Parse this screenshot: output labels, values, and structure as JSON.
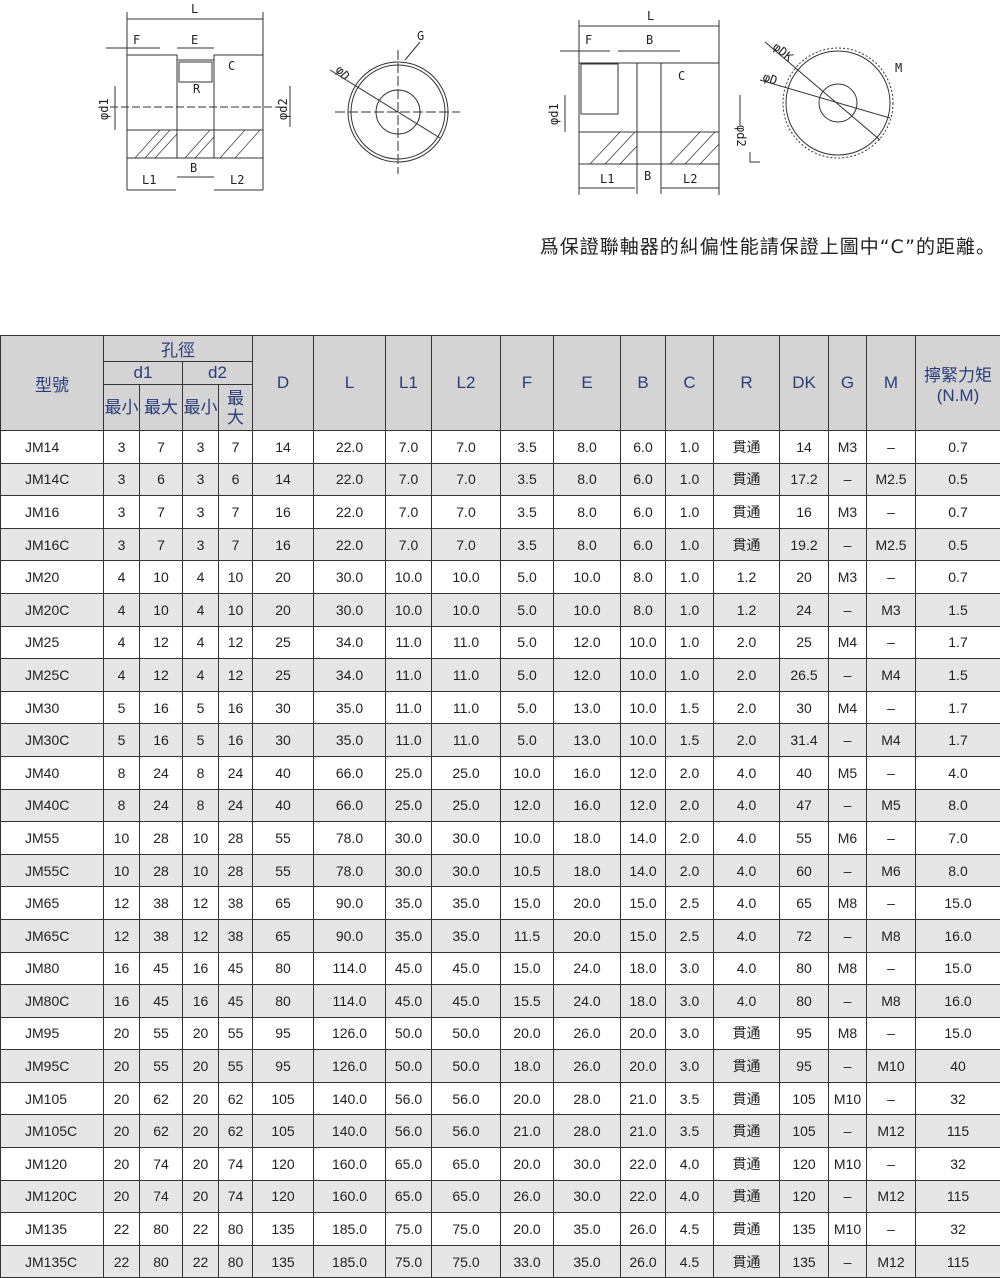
{
  "drawings": {
    "left": {
      "L": "L",
      "F": "F",
      "E": "E",
      "C": "C",
      "R": "R",
      "d1": "φd1",
      "d2": "φd2",
      "L1": "L1",
      "L2": "L2",
      "B": "B",
      "D": "φD",
      "G": "G"
    },
    "right": {
      "L": "L",
      "F": "F",
      "B": "B",
      "C": "C",
      "d1": "φd1",
      "d2": "φd2",
      "L1": "L1",
      "L2": "L2",
      "B2": "B",
      "DK": "φDK",
      "D": "φD",
      "M": "M"
    }
  },
  "caption": "爲保證聯軸器的糾偏性能請保證上圖中“C”的距離。",
  "table": {
    "headers": {
      "model": "型號",
      "bore": "孔徑",
      "d1": "d1",
      "d2": "d2",
      "min": "最小",
      "max": "最大",
      "D": "D",
      "L": "L",
      "L1": "L1",
      "L2": "L2",
      "F": "F",
      "E": "E",
      "B": "B",
      "C": "C",
      "R": "R",
      "DK": "DK",
      "G": "G",
      "M": "M",
      "torque": "擰緊力矩",
      "torque_unit": "(N.M)"
    },
    "rows": [
      [
        "JM14",
        "3",
        "7",
        "3",
        "7",
        "14",
        "22.0",
        "7.0",
        "7.0",
        "3.5",
        "8.0",
        "6.0",
        "1.0",
        "貫通",
        "14",
        "M3",
        "–",
        "0.7"
      ],
      [
        "JM14C",
        "3",
        "6",
        "3",
        "6",
        "14",
        "22.0",
        "7.0",
        "7.0",
        "3.5",
        "8.0",
        "6.0",
        "1.0",
        "貫通",
        "17.2",
        "–",
        "M2.5",
        "0.5"
      ],
      [
        "JM16",
        "3",
        "7",
        "3",
        "7",
        "16",
        "22.0",
        "7.0",
        "7.0",
        "3.5",
        "8.0",
        "6.0",
        "1.0",
        "貫通",
        "16",
        "M3",
        "–",
        "0.7"
      ],
      [
        "JM16C",
        "3",
        "7",
        "3",
        "7",
        "16",
        "22.0",
        "7.0",
        "7.0",
        "3.5",
        "8.0",
        "6.0",
        "1.0",
        "貫通",
        "19.2",
        "–",
        "M2.5",
        "0.5"
      ],
      [
        "JM20",
        "4",
        "10",
        "4",
        "10",
        "20",
        "30.0",
        "10.0",
        "10.0",
        "5.0",
        "10.0",
        "8.0",
        "1.0",
        "1.2",
        "20",
        "M3",
        "–",
        "0.7"
      ],
      [
        "JM20C",
        "4",
        "10",
        "4",
        "10",
        "20",
        "30.0",
        "10.0",
        "10.0",
        "5.0",
        "10.0",
        "8.0",
        "1.0",
        "1.2",
        "24",
        "–",
        "M3",
        "1.5"
      ],
      [
        "JM25",
        "4",
        "12",
        "4",
        "12",
        "25",
        "34.0",
        "11.0",
        "11.0",
        "5.0",
        "12.0",
        "10.0",
        "1.0",
        "2.0",
        "25",
        "M4",
        "–",
        "1.7"
      ],
      [
        "JM25C",
        "4",
        "12",
        "4",
        "12",
        "25",
        "34.0",
        "11.0",
        "11.0",
        "5.0",
        "12.0",
        "10.0",
        "1.0",
        "2.0",
        "26.5",
        "–",
        "M4",
        "1.5"
      ],
      [
        "JM30",
        "5",
        "16",
        "5",
        "16",
        "30",
        "35.0",
        "11.0",
        "11.0",
        "5.0",
        "13.0",
        "10.0",
        "1.5",
        "2.0",
        "30",
        "M4",
        "–",
        "1.7"
      ],
      [
        "JM30C",
        "5",
        "16",
        "5",
        "16",
        "30",
        "35.0",
        "11.0",
        "11.0",
        "5.0",
        "13.0",
        "10.0",
        "1.5",
        "2.0",
        "31.4",
        "–",
        "M4",
        "1.7"
      ],
      [
        "JM40",
        "8",
        "24",
        "8",
        "24",
        "40",
        "66.0",
        "25.0",
        "25.0",
        "10.0",
        "16.0",
        "12.0",
        "2.0",
        "4.0",
        "40",
        "M5",
        "–",
        "4.0"
      ],
      [
        "JM40C",
        "8",
        "24",
        "8",
        "24",
        "40",
        "66.0",
        "25.0",
        "25.0",
        "12.0",
        "16.0",
        "12.0",
        "2.0",
        "4.0",
        "47",
        "–",
        "M5",
        "8.0"
      ],
      [
        "JM55",
        "10",
        "28",
        "10",
        "28",
        "55",
        "78.0",
        "30.0",
        "30.0",
        "10.0",
        "18.0",
        "14.0",
        "2.0",
        "4.0",
        "55",
        "M6",
        "–",
        "7.0"
      ],
      [
        "JM55C",
        "10",
        "28",
        "10",
        "28",
        "55",
        "78.0",
        "30.0",
        "30.0",
        "10.5",
        "18.0",
        "14.0",
        "2.0",
        "4.0",
        "60",
        "–",
        "M6",
        "8.0"
      ],
      [
        "JM65",
        "12",
        "38",
        "12",
        "38",
        "65",
        "90.0",
        "35.0",
        "35.0",
        "15.0",
        "20.0",
        "15.0",
        "2.5",
        "4.0",
        "65",
        "M8",
        "–",
        "15.0"
      ],
      [
        "JM65C",
        "12",
        "38",
        "12",
        "38",
        "65",
        "90.0",
        "35.0",
        "35.0",
        "11.5",
        "20.0",
        "15.0",
        "2.5",
        "4.0",
        "72",
        "–",
        "M8",
        "16.0"
      ],
      [
        "JM80",
        "16",
        "45",
        "16",
        "45",
        "80",
        "114.0",
        "45.0",
        "45.0",
        "15.0",
        "24.0",
        "18.0",
        "3.0",
        "4.0",
        "80",
        "M8",
        "–",
        "15.0"
      ],
      [
        "JM80C",
        "16",
        "45",
        "16",
        "45",
        "80",
        "114.0",
        "45.0",
        "45.0",
        "15.5",
        "24.0",
        "18.0",
        "3.0",
        "4.0",
        "80",
        "–",
        "M8",
        "16.0"
      ],
      [
        "JM95",
        "20",
        "55",
        "20",
        "55",
        "95",
        "126.0",
        "50.0",
        "50.0",
        "20.0",
        "26.0",
        "20.0",
        "3.0",
        "貫通",
        "95",
        "M8",
        "–",
        "15.0"
      ],
      [
        "JM95C",
        "20",
        "55",
        "20",
        "55",
        "95",
        "126.0",
        "50.0",
        "50.0",
        "18.0",
        "26.0",
        "20.0",
        "3.0",
        "貫通",
        "95",
        "–",
        "M10",
        "40"
      ],
      [
        "JM105",
        "20",
        "62",
        "20",
        "62",
        "105",
        "140.0",
        "56.0",
        "56.0",
        "20.0",
        "28.0",
        "21.0",
        "3.5",
        "貫通",
        "105",
        "M10",
        "–",
        "32"
      ],
      [
        "JM105C",
        "20",
        "62",
        "20",
        "62",
        "105",
        "140.0",
        "56.0",
        "56.0",
        "21.0",
        "28.0",
        "21.0",
        "3.5",
        "貫通",
        "105",
        "–",
        "M12",
        "115"
      ],
      [
        "JM120",
        "20",
        "74",
        "20",
        "74",
        "120",
        "160.0",
        "65.0",
        "65.0",
        "20.0",
        "30.0",
        "22.0",
        "4.0",
        "貫通",
        "120",
        "M10",
        "–",
        "32"
      ],
      [
        "JM120C",
        "20",
        "74",
        "20",
        "74",
        "120",
        "160.0",
        "65.0",
        "65.0",
        "26.0",
        "30.0",
        "22.0",
        "4.0",
        "貫通",
        "120",
        "–",
        "M12",
        "115"
      ],
      [
        "JM135",
        "22",
        "80",
        "22",
        "80",
        "135",
        "185.0",
        "75.0",
        "75.0",
        "20.0",
        "35.0",
        "26.0",
        "4.5",
        "貫通",
        "135",
        "M10",
        "–",
        "32"
      ],
      [
        "JM135C",
        "22",
        "80",
        "22",
        "80",
        "135",
        "185.0",
        "75.0",
        "75.0",
        "33.0",
        "35.0",
        "26.0",
        "4.5",
        "貫通",
        "135",
        "–",
        "M12",
        "115"
      ]
    ]
  }
}
